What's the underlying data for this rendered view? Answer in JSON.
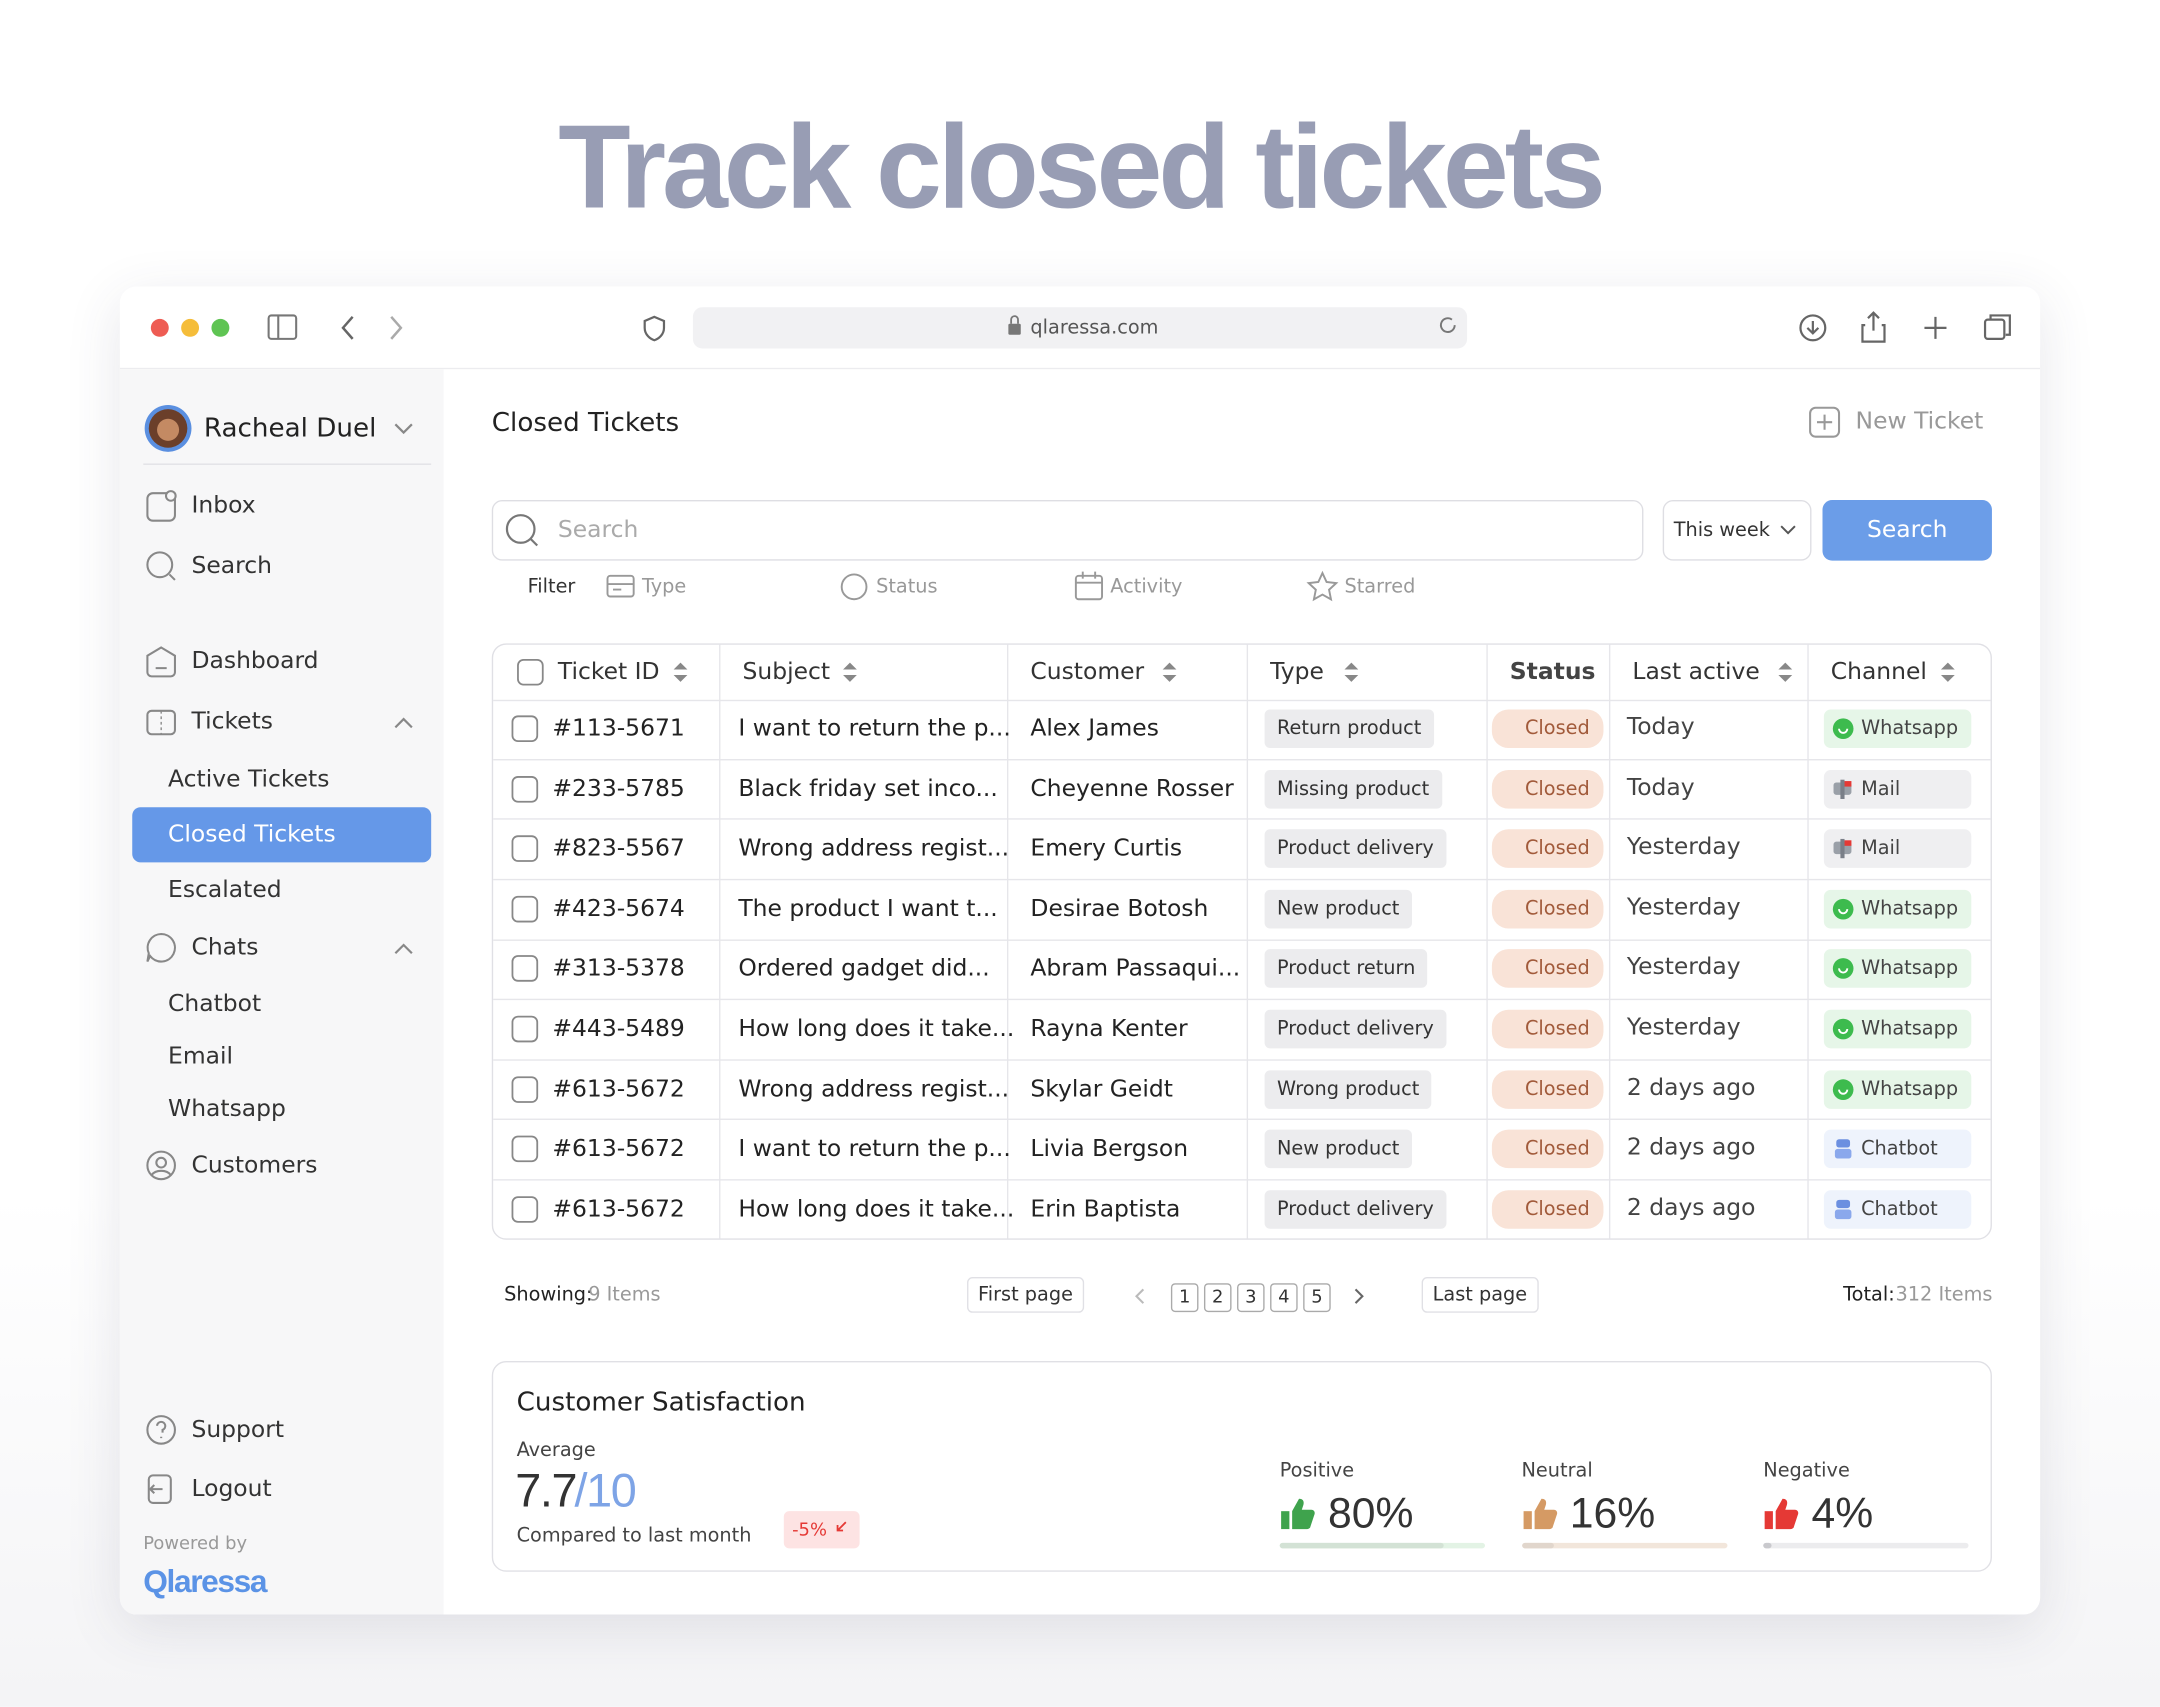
{
  "header": {
    "title": "Track closed tickets"
  },
  "browser": {
    "url": "qlaressa.com"
  },
  "sidebar": {
    "user": "Racheal Duel",
    "nav": [
      {
        "label": "Inbox",
        "level": 0
      },
      {
        "label": "Search",
        "level": 0
      },
      {
        "label": "Dashboard",
        "level": 0
      },
      {
        "label": "Tickets",
        "level": 0,
        "expanded": true
      },
      {
        "label": "Active Tickets",
        "level": 1
      },
      {
        "label": "Closed Tickets",
        "level": 1,
        "active": true
      },
      {
        "label": "Escalated",
        "level": 1
      },
      {
        "label": "Chats",
        "level": 0,
        "expanded": true
      },
      {
        "label": "Chatbot",
        "level": 1
      },
      {
        "label": "Email",
        "level": 1
      },
      {
        "label": "Whatsapp",
        "level": 1
      },
      {
        "label": "Customers",
        "level": 0
      }
    ],
    "bottom_nav": [
      "Support",
      "Logout"
    ],
    "powered_by": "Powered by",
    "brand": "Qlaressa"
  },
  "main": {
    "title": "Closed Tickets",
    "new_ticket": "New Ticket",
    "search_placeholder": "Search",
    "period": "This week",
    "search_button": "Search",
    "filter_label": "Filter",
    "filters": [
      "Type",
      "Status",
      "Activity",
      "Starred"
    ]
  },
  "table": {
    "columns": [
      "Ticket ID",
      "Subject",
      "Customer",
      "Type",
      "Status",
      "Last active",
      "Channel"
    ],
    "rows": [
      {
        "id": "#113-5671",
        "subject": "I want to return the p...",
        "customer": "Alex James",
        "type": "Return product",
        "status": "Closed",
        "last_active": "Today",
        "channel": "Whatsapp",
        "channel_color": "#e6f6e8"
      },
      {
        "id": "#233-5785",
        "subject": "Black friday set inco...",
        "customer": "Cheyenne Rosser",
        "type": "Missing product",
        "status": "Closed",
        "last_active": "Today",
        "channel": "Mail",
        "channel_color": "#efeff1"
      },
      {
        "id": "#823-5567",
        "subject": "Wrong address regist...",
        "customer": "Emery Curtis",
        "type": "Product delivery",
        "status": "Closed",
        "last_active": "Yesterday",
        "channel": "Mail",
        "channel_color": "#efeff1"
      },
      {
        "id": "#423-5674",
        "subject": "The product I want t...",
        "customer": "Desirae Botosh",
        "type": "New product",
        "status": "Closed",
        "last_active": "Yesterday",
        "channel": "Whatsapp",
        "channel_color": "#e6f6e8"
      },
      {
        "id": "#313-5378",
        "subject": "Ordered gadget did...",
        "customer": "Abram Passaqui...",
        "type": "Product return",
        "status": "Closed",
        "last_active": "Yesterday",
        "channel": "Whatsapp",
        "channel_color": "#e6f6e8"
      },
      {
        "id": "#443-5489",
        "subject": "How long does it take...",
        "customer": "Rayna Kenter",
        "type": "Product delivery",
        "status": "Closed",
        "last_active": "Yesterday",
        "channel": "Whatsapp",
        "channel_color": "#e6f6e8"
      },
      {
        "id": "#613-5672",
        "subject": "Wrong address regist...",
        "customer": "Skylar Geidt",
        "type": "Wrong product",
        "status": "Closed",
        "last_active": "2 days ago",
        "channel": "Whatsapp",
        "channel_color": "#e6f6e8"
      },
      {
        "id": "#613-5672",
        "subject": "I want to return the p...",
        "customer": "Livia Bergson",
        "type": "New product",
        "status": "Closed",
        "last_active": "2 days ago",
        "channel": "Chatbot",
        "channel_color": "#eef3fc"
      },
      {
        "id": "#613-5672",
        "subject": "How long does it take...",
        "customer": "Erin Baptista",
        "type": "Product delivery",
        "status": "Closed",
        "last_active": "2 days ago",
        "channel": "Chatbot",
        "channel_color": "#eef3fc"
      }
    ]
  },
  "pagination": {
    "showing_label": "Showing:",
    "showing": "9 Items",
    "first": "First page",
    "pages": [
      "1",
      "2",
      "3",
      "4",
      "5"
    ],
    "last": "Last page",
    "total_label": "Total:",
    "total": "312 Items"
  },
  "satisfaction": {
    "title": "Customer Satisfaction",
    "average_label": "Average",
    "score": "7.7",
    "out_of": "/10",
    "compared": "Compared to last month",
    "change": "-5%",
    "sentiments": [
      {
        "name": "Positive",
        "value": 80,
        "value_label": "80%",
        "color": "#3fa34d",
        "track": "#e3f3e5"
      },
      {
        "name": "Neutral",
        "value": 16,
        "value_label": "16%",
        "color": "#d59a64",
        "track": "#f2e6db"
      },
      {
        "name": "Negative",
        "value": 4,
        "value_label": "4%",
        "color": "#e53935",
        "track": "#ececee"
      }
    ]
  }
}
